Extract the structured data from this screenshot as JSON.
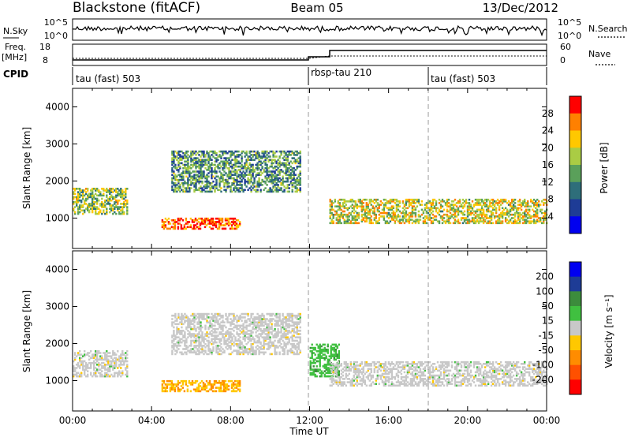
{
  "header": {
    "station": "Blackstone (fitACF)",
    "beam": "Beam 05",
    "date": "13/Dec/2012"
  },
  "noise_panel": {
    "left_label": "N.Sky",
    "left_ticks": [
      "10^5",
      "10^0"
    ],
    "right_label": "N.Search",
    "right_ticks": [
      "10^5",
      "10^0"
    ]
  },
  "freq_panel": {
    "left_label_line1": "Freq.",
    "left_label_line2": "[MHz]",
    "left_ticks": [
      "18",
      "8"
    ],
    "right_label": "Nave",
    "right_ticks": [
      "60",
      "0"
    ]
  },
  "cpid": {
    "label": "CPID",
    "segments": [
      {
        "label": "tau (fast) 503",
        "start_hour": 0
      },
      {
        "label": "rbsp-tau 210",
        "start_hour": 12
      },
      {
        "label": "tau (fast) 503",
        "start_hour": 18
      }
    ]
  },
  "x_axis": {
    "label": "Time UT",
    "tick_labels": [
      "00:00",
      "04:00",
      "08:00",
      "12:00",
      "16:00",
      "20:00",
      "00:00"
    ],
    "range_hours": [
      0,
      24
    ]
  },
  "chart_data": [
    {
      "type": "heatmap",
      "name": "power",
      "ylabel": "Slant Range [km]",
      "y_ticks": [
        1000,
        2000,
        3000,
        4000
      ],
      "ylim": [
        180,
        4500
      ],
      "colorbar": {
        "label": "Power [dB]",
        "tick_labels": [
          "28",
          "24",
          "20",
          "16",
          "12",
          "8",
          "4"
        ],
        "range": [
          0,
          30
        ],
        "colors": [
          "#0000f0",
          "#1e3c96",
          "#2e6e7a",
          "#5aa05a",
          "#aacc44",
          "#ffc800",
          "#ff8000",
          "#ff0000"
        ]
      },
      "regions": [
        {
          "t": [
            0.0,
            2.8
          ],
          "r": [
            1100,
            1800
          ],
          "db": 16
        },
        {
          "t": [
            4.5,
            8.5
          ],
          "r": [
            700,
            1000
          ],
          "db": 26
        },
        {
          "t": [
            5.0,
            11.5
          ],
          "r": [
            1700,
            2800
          ],
          "db": 12
        },
        {
          "t": [
            13.0,
            24.0
          ],
          "r": [
            850,
            1500
          ],
          "db": 18
        }
      ]
    },
    {
      "type": "heatmap",
      "name": "velocity",
      "ylabel": "Slant Range [km]",
      "y_ticks": [
        1000,
        2000,
        3000,
        4000
      ],
      "ylim": [
        180,
        4500
      ],
      "colorbar": {
        "label": "Velocity [m s⁻¹]",
        "tick_labels": [
          "200",
          "100",
          "50",
          "15",
          "-15",
          "-50",
          "-100",
          "-200"
        ],
        "range": [
          -250,
          250
        ],
        "colors": [
          "#ff0000",
          "#ff5000",
          "#ff8c00",
          "#ffc800",
          "#c8c8c8",
          "#40c040",
          "#3c8c3c",
          "#1e3c96",
          "#0000f0"
        ]
      },
      "regions": [
        {
          "t": [
            0.0,
            2.8
          ],
          "r": [
            1100,
            1800
          ],
          "v": 0
        },
        {
          "t": [
            4.5,
            8.5
          ],
          "r": [
            700,
            1000
          ],
          "v": -80
        },
        {
          "t": [
            5.0,
            11.5
          ],
          "r": [
            1700,
            2800
          ],
          "v": 0
        },
        {
          "t": [
            12.0,
            13.5
          ],
          "r": [
            1100,
            2000
          ],
          "v": 60
        },
        {
          "t": [
            13.0,
            24.0
          ],
          "r": [
            850,
            1500
          ],
          "v": 0
        }
      ]
    }
  ]
}
